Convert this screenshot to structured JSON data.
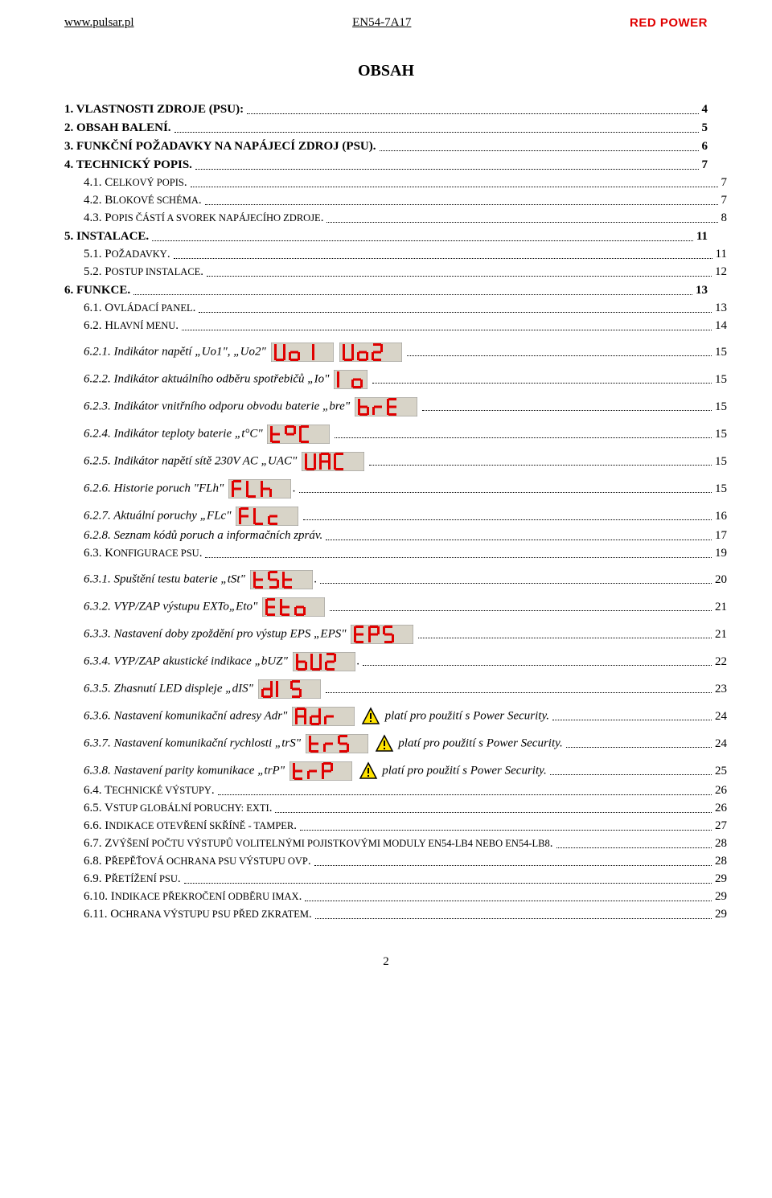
{
  "header": {
    "left": "www.pulsar.pl",
    "center": "EN54-7A17",
    "right": "RED POWER"
  },
  "title": "OBSAH",
  "led_style": {
    "width": 78,
    "height": 24,
    "narrow_width": 24,
    "bg": "#d8d4c8",
    "border": "#909090",
    "seg": "#e00000"
  },
  "warn_style": {
    "size": 24,
    "stroke": "#000000",
    "fill": "#ffe300"
  },
  "entries": [
    {
      "level": 1,
      "num": "1.",
      "label": "VLASTNOSTI ZDROJE (PSU):",
      "page": "4",
      "bold": true
    },
    {
      "level": 1,
      "num": "2.",
      "label": "OBSAH BALENÍ.",
      "page": "5",
      "bold": true
    },
    {
      "level": 1,
      "num": "3.",
      "label": "FUNKČNÍ POŽADAVKY NA NAPÁJECÍ ZDROJ (PSU).",
      "page": "6",
      "bold": true
    },
    {
      "level": 1,
      "num": "4.",
      "label": "TECHNICKÝ POPIS.",
      "page": "7",
      "bold": true
    },
    {
      "level": 2,
      "num": "4.1.",
      "label": "C",
      "rest": "ELKOVÝ POPIS",
      "page": "7",
      "smallcaps": true,
      "dot": "."
    },
    {
      "level": 2,
      "num": "4.2.",
      "label": "B",
      "rest": "LOKOVÉ SCHÉMA",
      "page": "7",
      "smallcaps": true,
      "dot": "."
    },
    {
      "level": 2,
      "num": "4.3.",
      "label": "P",
      "rest": "OPIS ČÁSTÍ A SVOREK NAPÁJECÍHO ZDROJE",
      "page": "8",
      "smallcaps": true,
      "dot": "."
    },
    {
      "level": 1,
      "num": "5.",
      "label": "INSTALACE.",
      "page": "11",
      "bold": true
    },
    {
      "level": 2,
      "num": "5.1.",
      "label": "P",
      "rest": "OŽADAVKY",
      "page": "11",
      "smallcaps": true,
      "dot": "."
    },
    {
      "level": 2,
      "num": "5.2.",
      "label": "P",
      "rest": "OSTUP INSTALACE",
      "page": "12",
      "smallcaps": true,
      "dot": ". "
    },
    {
      "level": 1,
      "num": "6.",
      "label": "FUNKCE.",
      "page": "13",
      "bold": true
    },
    {
      "level": 2,
      "num": "6.1.",
      "label": "O",
      "rest": "VLÁDACÍ PANEL",
      "page": "13",
      "smallcaps": true,
      "dot": "."
    },
    {
      "level": 2,
      "num": "6.2.",
      "label": "H",
      "rest": "LAVNÍ MENU",
      "page": "14",
      "smallcaps": true,
      "dot": ". "
    },
    {
      "level": 3,
      "num": "6.2.1.",
      "italic": true,
      "text": "Indikátor napětí „Uo1\", „Uo2\"",
      "led1": "Uo1",
      "led2": "Uo2",
      "page": "15"
    },
    {
      "level": 3,
      "num": "6.2.2.",
      "italic": true,
      "text": "Indikátor aktuálního odběru spotřebičů „Io\"",
      "led1": "Io",
      "narrow1": true,
      "page": "15"
    },
    {
      "level": 3,
      "num": "6.2.3.",
      "italic": true,
      "text": "Indikátor vnitřního odporu obvodu baterie „bre\"",
      "led1": "brE",
      "page": "15"
    },
    {
      "level": 3,
      "num": "6.2.4.",
      "italic": true,
      "text": "Indikátor teploty baterie  „t°C\"",
      "led1": "t°C",
      "page": "15"
    },
    {
      "level": 3,
      "num": "6.2.5.",
      "italic": true,
      "text": "Indikátor napětí sítě 230V AC „UAC\"",
      "led1": "UAC",
      "page": "15"
    },
    {
      "level": 3,
      "num": "6.2.6.",
      "italic": true,
      "text": "Historie poruch \"FLh\"",
      "led1": "FLh",
      "aftertext": ".",
      "page": "15"
    },
    {
      "level": 3,
      "num": "6.2.7.",
      "italic": true,
      "text": " Aktuální poruchy „FLc\"",
      "led1": "FLc",
      "page": "16"
    },
    {
      "level": 3,
      "num": "6.2.8.",
      "italic": true,
      "plain": true,
      "text": "Seznam kódů poruch a informačních zpráv.",
      "page": "17"
    },
    {
      "level": 2,
      "num": "6.3.",
      "label": "K",
      "rest": "ONFIGURACE PSU",
      "page": "19",
      "smallcaps": true,
      "dot": "."
    },
    {
      "level": 3,
      "num": "6.3.1.",
      "italic": true,
      "text": "Spuštění testu baterie „tSt\"",
      "led1": "tSt",
      "aftertext": ".",
      "page": "20"
    },
    {
      "level": 3,
      "num": "6.3.2.",
      "italic": true,
      "text": "VYP/ZAP výstupu EXTo„Eto\"",
      "led1": "Eto",
      "page": "21"
    },
    {
      "level": 3,
      "num": "6.3.3.",
      "italic": true,
      "text": "Nastavení doby zpoždění pro výstup EPS „EPS\"",
      "led1": "EPS",
      "page": "21"
    },
    {
      "level": 3,
      "num": "6.3.4.",
      "italic": true,
      "text": "VYP/ZAP akustické indikace „bUZ\"",
      "led1": "bUZ",
      "aftertext": ".",
      "page": "22"
    },
    {
      "level": 3,
      "num": "6.3.5.",
      "italic": true,
      "text": "Zhasnutí LED displeje   „dIS\"",
      "led1": "dIS",
      "page": "23"
    },
    {
      "level": 3,
      "num": "6.3.6.",
      "italic": true,
      "text": "Nastavení komunikační adresy Adr\"",
      "led1": "Adr",
      "warn": true,
      "aftertext": "   platí pro použití s Power Security. ",
      "page": "24"
    },
    {
      "level": 3,
      "num": "6.3.7.",
      "italic": true,
      "text": "Nastavení komunikační rychlosti „trS\"",
      "led1": "trS",
      "warn": true,
      "aftertext": "  platí pro použití s Power Security. ",
      "page": "24"
    },
    {
      "level": 3,
      "num": "6.3.8.",
      "italic": true,
      "text": "Nastavení parity komunikace „trP\"",
      "led1": "trP",
      "warn": true,
      "aftertext": "  platí pro použití s Power Security.",
      "page": "25"
    },
    {
      "level": 2,
      "num": "6.4.",
      "label": "T",
      "rest": "ECHNICKÉ VÝSTUPY",
      "page": "26",
      "smallcaps": true,
      "dot": "."
    },
    {
      "level": 2,
      "num": "6.5.",
      "label": "V",
      "rest": "STUP GLOBÁLNÍ PORUCHY: EXTI",
      "page": "26",
      "smallcaps": true,
      "dot": "."
    },
    {
      "level": 2,
      "num": "6.6.",
      "label": "I",
      "rest": "NDIKACE OTEVŘENÍ SKŘÍNĚ - TAMPER",
      "page": "27",
      "smallcaps": true,
      "dot": ". "
    },
    {
      "level": 2,
      "num": "6.7.",
      "label": "Z",
      "rest": "VÝŠENÍ POČTU VÝSTUPŮ VOLITELNÝMI POJISTKOVÝMI MODULY EN54-LB4 NEBO EN54-LB8",
      "page": "28",
      "smallcaps": true,
      "dot": "."
    },
    {
      "level": 2,
      "num": "6.8.",
      "label": "P",
      "rest": "ŘEPĚŤOVÁ OCHRANA PSU VÝSTUPU OVP",
      "page": "28",
      "smallcaps": true,
      "dot": ". "
    },
    {
      "level": 2,
      "num": "6.9.",
      "label": "P",
      "rest": "ŘETÍŽENÍ PSU",
      "page": "29",
      "smallcaps": true,
      "dot": ". "
    },
    {
      "level": 2,
      "num": "6.10.",
      "label": "I",
      "rest": "NDIKACE PŘEKROČENÍ ODBĚRU IMAX",
      "page": "29",
      "smallcaps": true,
      "dot": ". "
    },
    {
      "level": 2,
      "num": "6.11.",
      "label": "O",
      "rest": "CHRANA VÝSTUPU PSU PŘED ZKRATEM",
      "page": "29",
      "smallcaps": true,
      "dot": ". "
    }
  ],
  "page_number": "2"
}
